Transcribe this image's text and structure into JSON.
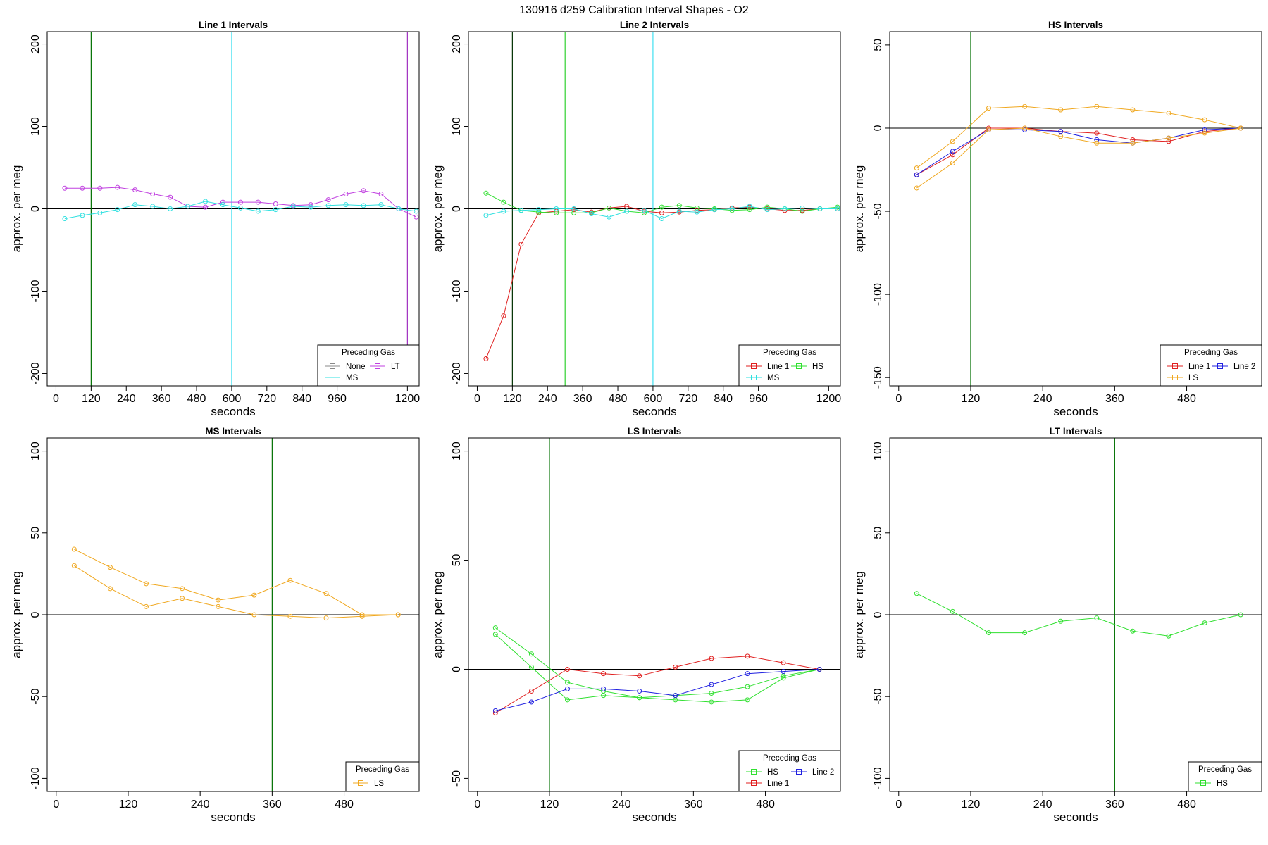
{
  "figure_title": "130916   d259   Calibration Interval Shapes - O2",
  "chart_data": [
    {
      "type": "line",
      "title": "Line 1 Intervals",
      "xlabel": "seconds",
      "ylabel": "approx. per meg",
      "xlim": [
        -30,
        1240
      ],
      "ylim": [
        -215,
        215
      ],
      "xticks": [
        0,
        120,
        240,
        360,
        480,
        600,
        720,
        840,
        960,
        1200
      ],
      "yticks": [
        -200,
        -100,
        0,
        100,
        200
      ],
      "hlines": [
        {
          "y": 0,
          "color": "#000000"
        }
      ],
      "vlines": [
        {
          "x": 120,
          "color": "#007000"
        },
        {
          "x": 600,
          "color": "#40e0f0"
        },
        {
          "x": 1200,
          "color": "#a030c0"
        }
      ],
      "legend": {
        "title": "Preceding Gas",
        "position": "bottom-right",
        "columns": 2,
        "entries": [
          {
            "label": "None",
            "color": "#888888"
          },
          {
            "label": "LT",
            "color": "#c040e0"
          },
          {
            "label": "MS",
            "color": "#30e0e0"
          }
        ]
      },
      "series": [
        {
          "name": "LT",
          "color": "#c040e0",
          "x": [
            30,
            90,
            150,
            210,
            270,
            330,
            390,
            450,
            510,
            570,
            630,
            690,
            750,
            810,
            870,
            930,
            990,
            1050,
            1110,
            1170,
            1230
          ],
          "y": [
            25,
            25,
            25,
            26,
            23,
            18,
            14,
            3,
            2,
            8,
            8,
            8,
            6,
            4,
            5,
            11,
            18,
            22,
            18,
            0,
            -10
          ]
        },
        {
          "name": "MS",
          "color": "#30e0e0",
          "x": [
            30,
            90,
            150,
            210,
            270,
            330,
            390,
            450,
            510,
            570,
            630,
            690,
            750,
            810,
            870,
            930,
            990,
            1050,
            1110,
            1170,
            1230
          ],
          "y": [
            -12,
            -8,
            -5,
            -1,
            5,
            3,
            0,
            3,
            9,
            5,
            1,
            -3,
            -1,
            3,
            2,
            4,
            5,
            4,
            5,
            0,
            -3
          ]
        }
      ]
    },
    {
      "type": "line",
      "title": "Line 2 Intervals",
      "xlabel": "seconds",
      "ylabel": "approx. per meg",
      "xlim": [
        -30,
        1240
      ],
      "ylim": [
        -215,
        215
      ],
      "xticks": [
        0,
        120,
        240,
        360,
        480,
        600,
        720,
        840,
        960,
        1200
      ],
      "yticks": [
        -200,
        -100,
        0,
        100,
        200
      ],
      "hlines": [
        {
          "y": 0,
          "color": "#000000"
        }
      ],
      "vlines": [
        {
          "x": 120,
          "color": "#003000"
        },
        {
          "x": 300,
          "color": "#30d030"
        },
        {
          "x": 600,
          "color": "#40e0f0"
        }
      ],
      "legend": {
        "title": "Preceding Gas",
        "position": "bottom-right",
        "columns": 2,
        "entries": [
          {
            "label": "Line 1",
            "color": "#e02020"
          },
          {
            "label": "HS",
            "color": "#30e030"
          },
          {
            "label": "MS",
            "color": "#30e0e0"
          }
        ]
      },
      "series": [
        {
          "name": "Line 1",
          "color": "#e02020",
          "x": [
            30,
            90,
            150,
            210,
            270,
            330,
            390,
            450,
            510,
            570,
            630,
            690,
            750,
            810,
            870,
            930,
            990,
            1050,
            1110,
            1170,
            1230
          ],
          "y": [
            -182,
            -130,
            -43,
            -5,
            -3,
            -1,
            -4,
            1,
            3,
            -3,
            -5,
            -4,
            -2,
            -1,
            1,
            2,
            0,
            -2,
            -2,
            0,
            0
          ]
        },
        {
          "name": "HS",
          "color": "#30e030",
          "x": [
            30,
            90,
            150,
            210,
            270,
            330,
            390,
            450,
            510,
            570,
            630,
            690,
            750,
            810,
            870,
            930,
            990,
            1050,
            1110,
            1170,
            1230
          ],
          "y": [
            19,
            8,
            -2,
            -4,
            -5,
            -5,
            -5,
            1,
            -3,
            -5,
            2,
            4,
            1,
            0,
            -2,
            -1,
            2,
            0,
            -3,
            0,
            2
          ]
        },
        {
          "name": "MS",
          "color": "#30e0e0",
          "x": [
            30,
            90,
            150,
            210,
            270,
            330,
            390,
            450,
            510,
            570,
            630,
            690,
            750,
            810,
            870,
            930,
            990,
            1050,
            1110,
            1170,
            1230
          ],
          "y": [
            -8,
            -3,
            -2,
            -1,
            0,
            0,
            -6,
            -10,
            -3,
            -2,
            -12,
            -3,
            -4,
            -1,
            0,
            3,
            -1,
            0,
            1,
            0,
            0
          ]
        }
      ]
    },
    {
      "type": "line",
      "title": "HS Intervals",
      "xlabel": "seconds",
      "ylabel": "approx. per meg",
      "xlim": [
        -15,
        605
      ],
      "ylim": [
        -155,
        58
      ],
      "xticks": [
        0,
        120,
        240,
        360,
        480
      ],
      "yticks": [
        -150,
        -100,
        -50,
        0,
        50
      ],
      "hlines": [
        {
          "y": 0,
          "color": "#000000"
        }
      ],
      "vlines": [
        {
          "x": 120,
          "color": "#007000"
        }
      ],
      "legend": {
        "title": "Preceding Gas",
        "position": "bottom-right",
        "columns": 2,
        "entries": [
          {
            "label": "Line 1",
            "color": "#e02020"
          },
          {
            "label": "Line 2",
            "color": "#2020e0"
          },
          {
            "label": "LS",
            "color": "#f0a820"
          }
        ]
      },
      "series": [
        {
          "name": "Line 1",
          "color": "#e02020",
          "x": [
            30,
            90,
            150,
            210,
            270,
            330,
            390,
            450,
            510,
            570
          ],
          "y": [
            -28,
            -16,
            0,
            0,
            -2,
            -3,
            -7,
            -8,
            -2,
            0
          ]
        },
        {
          "name": "Line 2",
          "color": "#2020e0",
          "x": [
            30,
            90,
            150,
            210,
            270,
            330,
            390,
            450,
            510,
            570
          ],
          "y": [
            -28,
            -14,
            -1,
            -1,
            -2,
            -7,
            -9,
            -6,
            -1,
            0
          ]
        },
        {
          "name": "LS",
          "color": "#f0a820",
          "x": [
            30,
            90,
            150,
            210,
            270,
            330,
            390,
            450,
            510,
            570
          ],
          "y": [
            -24,
            -8,
            12,
            13,
            11,
            13,
            11,
            9,
            5,
            0
          ]
        },
        {
          "name": "LS",
          "color": "#f0a820",
          "x": [
            30,
            90,
            150,
            210,
            270,
            330,
            390,
            450,
            510,
            570
          ],
          "y": [
            -36,
            -21,
            -1,
            0,
            -5,
            -9,
            -9,
            -6,
            -3,
            0
          ]
        }
      ]
    },
    {
      "type": "line",
      "title": "MS Intervals",
      "xlabel": "seconds",
      "ylabel": "approx. per meg",
      "xlim": [
        -15,
        605
      ],
      "ylim": [
        -108,
        108
      ],
      "xticks": [
        0,
        120,
        240,
        360,
        480
      ],
      "yticks": [
        -100,
        -50,
        0,
        50,
        100
      ],
      "hlines": [
        {
          "y": 0,
          "color": "#000000"
        }
      ],
      "vlines": [
        {
          "x": 360,
          "color": "#007000"
        }
      ],
      "legend": {
        "title": "Preceding Gas",
        "position": "bottom-right",
        "columns": 1,
        "entries": [
          {
            "label": "LS",
            "color": "#f0a820"
          }
        ]
      },
      "series": [
        {
          "name": "LS",
          "color": "#f0a820",
          "x": [
            30,
            90,
            150,
            210,
            270,
            330,
            390,
            450,
            510,
            570
          ],
          "y": [
            40,
            29,
            19,
            16,
            9,
            12,
            21,
            13,
            0,
            0
          ]
        },
        {
          "name": "LS",
          "color": "#f0a820",
          "x": [
            30,
            90,
            150,
            210,
            270,
            330,
            390,
            450,
            510,
            570
          ],
          "y": [
            30,
            16,
            5,
            10,
            5,
            0,
            -1,
            -2,
            -1,
            0
          ]
        }
      ]
    },
    {
      "type": "line",
      "title": "LS Intervals",
      "xlabel": "seconds",
      "ylabel": "approx. per meg",
      "xlim": [
        -15,
        605
      ],
      "ylim": [
        -56,
        106
      ],
      "xticks": [
        0,
        120,
        240,
        360,
        480
      ],
      "yticks": [
        -50,
        0,
        50,
        100
      ],
      "hlines": [
        {
          "y": 0,
          "color": "#000000"
        }
      ],
      "vlines": [
        {
          "x": 120,
          "color": "#007000"
        }
      ],
      "legend": {
        "title": "Preceding Gas",
        "position": "bottom-right",
        "columns": 2,
        "entries": [
          {
            "label": "HS",
            "color": "#30e030"
          },
          {
            "label": "Line 2",
            "color": "#2020e0"
          },
          {
            "label": "Line 1",
            "color": "#e02020"
          }
        ]
      },
      "series": [
        {
          "name": "HS",
          "color": "#30e030",
          "x": [
            30,
            90,
            150,
            210,
            270,
            330,
            390,
            450,
            510,
            570
          ],
          "y": [
            19,
            7,
            -6,
            -10,
            -13,
            -12,
            -11,
            -8,
            -3,
            0
          ]
        },
        {
          "name": "HS",
          "color": "#30e030",
          "x": [
            30,
            90,
            150,
            210,
            270,
            330,
            390,
            450,
            510,
            570
          ],
          "y": [
            16,
            1,
            -14,
            -12,
            -13,
            -14,
            -15,
            -14,
            -4,
            0
          ]
        },
        {
          "name": "Line 1",
          "color": "#e02020",
          "x": [
            30,
            90,
            150,
            210,
            270,
            330,
            390,
            450,
            510,
            570
          ],
          "y": [
            -20,
            -10,
            0,
            -2,
            -3,
            1,
            5,
            6,
            3,
            0
          ]
        },
        {
          "name": "Line 2",
          "color": "#2020e0",
          "x": [
            30,
            90,
            150,
            210,
            270,
            330,
            390,
            450,
            510,
            570
          ],
          "y": [
            -19,
            -15,
            -9,
            -9,
            -10,
            -12,
            -7,
            -2,
            -1,
            0
          ]
        }
      ]
    },
    {
      "type": "line",
      "title": "LT Intervals",
      "xlabel": "seconds",
      "ylabel": "approx. per meg",
      "xlim": [
        -15,
        605
      ],
      "ylim": [
        -108,
        108
      ],
      "xticks": [
        0,
        120,
        240,
        360,
        480
      ],
      "yticks": [
        -100,
        -50,
        0,
        50,
        100
      ],
      "hlines": [
        {
          "y": 0,
          "color": "#000000"
        }
      ],
      "vlines": [
        {
          "x": 360,
          "color": "#007000"
        }
      ],
      "legend": {
        "title": "Preceding Gas",
        "position": "bottom-right",
        "columns": 1,
        "entries": [
          {
            "label": "HS",
            "color": "#30e030"
          }
        ]
      },
      "series": [
        {
          "name": "HS",
          "color": "#30e030",
          "x": [
            30,
            90,
            150,
            210,
            270,
            330,
            390,
            450,
            510,
            570
          ],
          "y": [
            13,
            2,
            -11,
            -11,
            -4,
            -2,
            -10,
            -13,
            -5,
            0
          ]
        }
      ]
    }
  ]
}
